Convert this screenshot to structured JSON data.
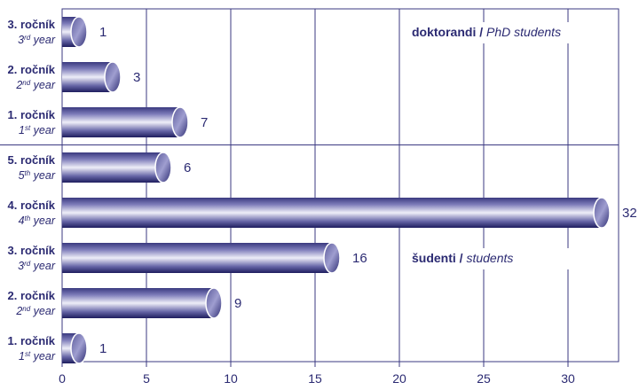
{
  "chart_data": {
    "type": "bar",
    "orientation": "horizontal",
    "xlim": [
      0,
      33
    ],
    "xticks": [
      0,
      5,
      10,
      15,
      20,
      25,
      30
    ],
    "grid": true,
    "groups": [
      {
        "title_bold": "doktorandi",
        "title_sep": " / ",
        "title_italic": "PhD students",
        "title_row": 0
      },
      {
        "title_bold": "šudenti",
        "title_sep": " / ",
        "title_italic": "students",
        "title_row": 5
      }
    ],
    "categories": [
      {
        "label": "3. ročník",
        "sub_num": "3",
        "sub_sup": "rd",
        "sub_tail": " year",
        "value": 1,
        "group": 0
      },
      {
        "label": "2. ročník",
        "sub_num": "2",
        "sub_sup": "nd",
        "sub_tail": " year",
        "value": 3,
        "group": 0
      },
      {
        "label": "1. ročník",
        "sub_num": "1",
        "sub_sup": "st",
        "sub_tail": " year",
        "value": 7,
        "group": 0
      },
      {
        "label": "5. ročník",
        "sub_num": "5",
        "sub_sup": "th",
        "sub_tail": " year",
        "value": 6,
        "group": 1
      },
      {
        "label": "4. ročník",
        "sub_num": "4",
        "sub_sup": "th",
        "sub_tail": " year",
        "value": 32,
        "group": 1
      },
      {
        "label": "3. ročník",
        "sub_num": "3",
        "sub_sup": "rd",
        "sub_tail": " year",
        "value": 16,
        "group": 1
      },
      {
        "label": "2. ročník",
        "sub_num": "2",
        "sub_sup": "nd",
        "sub_tail": " year",
        "value": 9,
        "group": 1
      },
      {
        "label": "1. ročník",
        "sub_num": "1",
        "sub_sup": "st",
        "sub_tail": " year",
        "value": 1,
        "group": 1
      }
    ],
    "colors": {
      "axis": "#3b3a82",
      "text": "#2b2a72",
      "bar_dark": "#1e1d5e",
      "bar_light": "#e6e6f5"
    }
  }
}
